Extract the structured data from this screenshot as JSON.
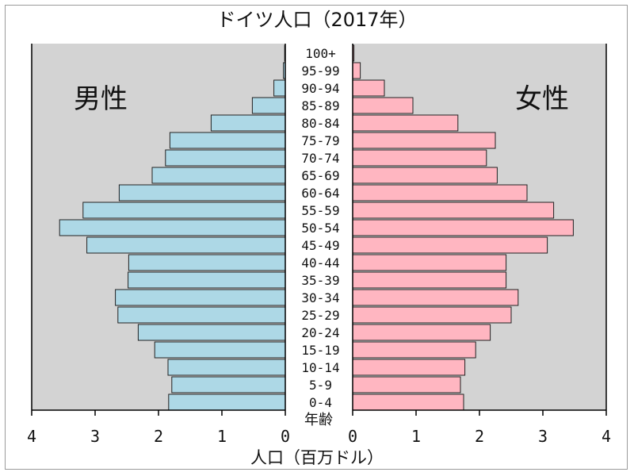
{
  "chart_data": {
    "type": "bar",
    "title": "ドイツ人口（2017年）",
    "xlabel": "人口（百万ドル）",
    "category_axis_label": "年齢",
    "categories": [
      "100+",
      "95-99",
      "90-94",
      "85-89",
      "80-84",
      "75-79",
      "70-74",
      "65-69",
      "60-64",
      "55-59",
      "50-54",
      "45-49",
      "40-44",
      "35-39",
      "30-34",
      "25-29",
      "20-24",
      "15-19",
      "10-14",
      "5-9",
      "0-4"
    ],
    "series": [
      {
        "name": "男性",
        "side": "left",
        "color": "#add8e6",
        "values": [
          0.01,
          0.03,
          0.18,
          0.52,
          1.17,
          1.82,
          1.89,
          2.1,
          2.62,
          3.19,
          3.56,
          3.13,
          2.47,
          2.48,
          2.68,
          2.64,
          2.32,
          2.06,
          1.85,
          1.79,
          1.84
        ]
      },
      {
        "name": "女性",
        "side": "right",
        "color": "#ffb6c1",
        "values": [
          0.02,
          0.12,
          0.5,
          0.95,
          1.66,
          2.25,
          2.11,
          2.28,
          2.75,
          3.17,
          3.48,
          3.07,
          2.42,
          2.42,
          2.61,
          2.5,
          2.17,
          1.94,
          1.77,
          1.7,
          1.75
        ]
      }
    ],
    "xlim": [
      0,
      4
    ],
    "x_ticks": [
      "4",
      "3",
      "2",
      "1",
      "0",
      "0",
      "1",
      "2",
      "3",
      "4"
    ],
    "colors": {
      "panel_bg": "#d3d3d3",
      "bar_edge": "#222222"
    }
  }
}
